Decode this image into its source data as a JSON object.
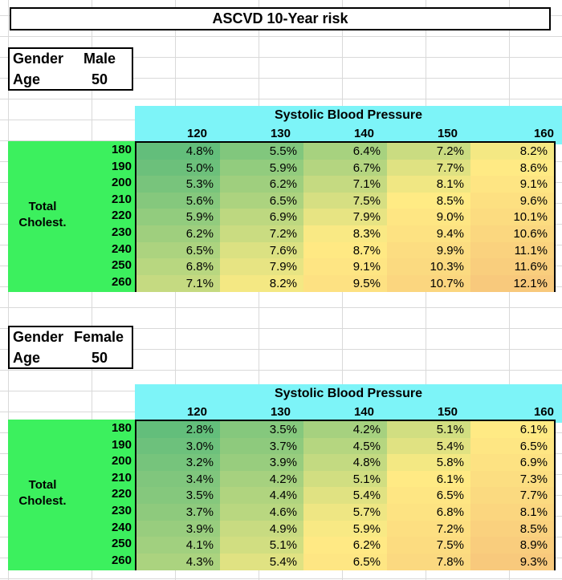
{
  "title": "ASCVD 10-Year risk",
  "tables": [
    {
      "gender_label": "Gender",
      "gender_value": "Male",
      "age_label": "Age",
      "age_value": "50",
      "sbp_title": "Systolic Blood Pressure",
      "sbp_columns": [
        "120",
        "130",
        "140",
        "150",
        "160"
      ],
      "chol_label": "Total Cholest.",
      "chol_rows": [
        "180",
        "190",
        "200",
        "210",
        "220",
        "230",
        "240",
        "250",
        "260"
      ],
      "values": [
        [
          "4.8%",
          "5.5%",
          "6.4%",
          "7.2%",
          "8.2%"
        ],
        [
          "5.0%",
          "5.9%",
          "6.7%",
          "7.7%",
          "8.6%"
        ],
        [
          "5.3%",
          "6.2%",
          "7.1%",
          "8.1%",
          "9.1%"
        ],
        [
          "5.6%",
          "6.5%",
          "7.5%",
          "8.5%",
          "9.6%"
        ],
        [
          "5.9%",
          "6.9%",
          "7.9%",
          "9.0%",
          "10.1%"
        ],
        [
          "6.2%",
          "7.2%",
          "8.3%",
          "9.4%",
          "10.6%"
        ],
        [
          "6.5%",
          "7.6%",
          "8.7%",
          "9.9%",
          "11.1%"
        ],
        [
          "6.8%",
          "7.9%",
          "9.1%",
          "10.3%",
          "11.6%"
        ],
        [
          "7.1%",
          "8.2%",
          "9.5%",
          "10.7%",
          "12.1%"
        ]
      ]
    },
    {
      "gender_label": "Gender",
      "gender_value": "Female",
      "age_label": "Age",
      "age_value": "50",
      "sbp_title": "Systolic Blood Pressure",
      "sbp_columns": [
        "120",
        "130",
        "140",
        "150",
        "160"
      ],
      "chol_label": "Total Cholest.",
      "chol_rows": [
        "180",
        "190",
        "200",
        "210",
        "220",
        "230",
        "240",
        "250",
        "260"
      ],
      "values": [
        [
          "2.8%",
          "3.5%",
          "4.2%",
          "5.1%",
          "6.1%"
        ],
        [
          "3.0%",
          "3.7%",
          "4.5%",
          "5.4%",
          "6.5%"
        ],
        [
          "3.2%",
          "3.9%",
          "4.8%",
          "5.8%",
          "6.9%"
        ],
        [
          "3.4%",
          "4.2%",
          "5.1%",
          "6.1%",
          "7.3%"
        ],
        [
          "3.5%",
          "4.4%",
          "5.4%",
          "6.5%",
          "7.7%"
        ],
        [
          "3.7%",
          "4.6%",
          "5.7%",
          "6.8%",
          "8.1%"
        ],
        [
          "3.9%",
          "4.9%",
          "5.9%",
          "7.2%",
          "8.5%"
        ],
        [
          "4.1%",
          "5.1%",
          "6.2%",
          "7.5%",
          "8.9%"
        ],
        [
          "4.3%",
          "5.4%",
          "6.5%",
          "7.8%",
          "9.3%"
        ]
      ]
    }
  ],
  "colors": {
    "header_cyan": "#7df4f8",
    "side_green": "#3cf05e",
    "scale_low": "#63be7b",
    "scale_mid": "#ffeb84",
    "scale_high": "#f8c97c"
  }
}
